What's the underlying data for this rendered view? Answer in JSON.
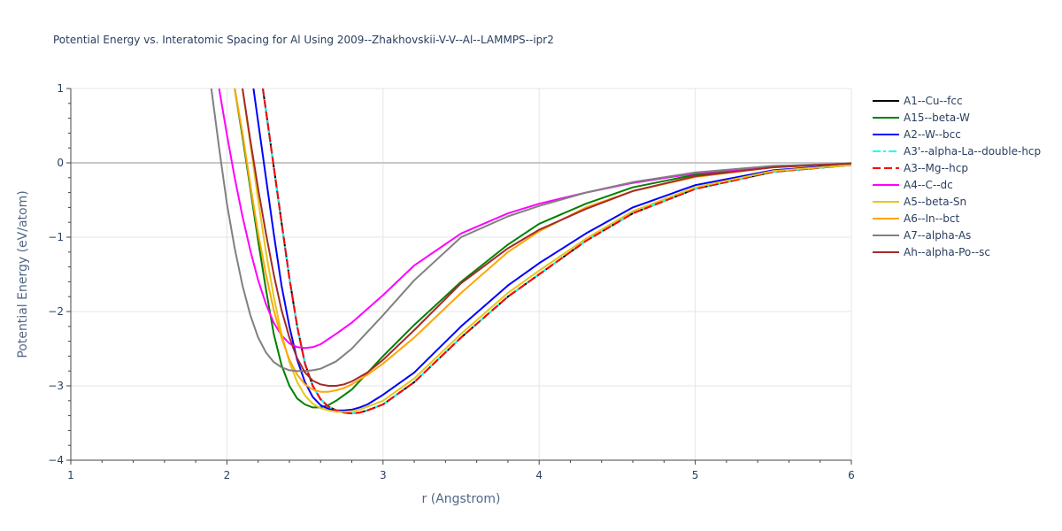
{
  "chart_data": {
    "type": "line",
    "title": "Potential Energy vs. Interatomic Spacing for Al Using 2009--Zhakhovskii-V-V--Al--LAMMPS--ipr2",
    "xlabel": "r (Angstrom)",
    "ylabel": "Potential Energy (eV/atom)",
    "xlim": [
      1,
      6
    ],
    "ylim": [
      -4,
      1
    ],
    "xticks": [
      1,
      2,
      3,
      4,
      5,
      6
    ],
    "xtick_labels": [
      "1",
      "2",
      "3",
      "4",
      "5",
      "6"
    ],
    "yticks": [
      -4,
      -3,
      -2,
      -1,
      0,
      1
    ],
    "ytick_labels": [
      "−4",
      "−3",
      "−2",
      "−1",
      "0",
      "1"
    ],
    "grid": true,
    "legend_position": "right",
    "series": [
      {
        "name": "A1--Cu--fcc",
        "color": "#000000",
        "dash": "solid",
        "x": [
          2.23,
          2.26,
          2.3,
          2.35,
          2.4,
          2.45,
          2.5,
          2.55,
          2.6,
          2.65,
          2.7,
          2.75,
          2.8,
          2.85,
          2.9,
          3.0,
          3.2,
          3.5,
          3.8,
          4.0,
          4.3,
          4.6,
          5.0,
          5.5,
          6.0
        ],
        "y": [
          1.0,
          0.55,
          -0.05,
          -0.8,
          -1.55,
          -2.2,
          -2.7,
          -3.0,
          -3.18,
          -3.28,
          -3.33,
          -3.36,
          -3.37,
          -3.36,
          -3.33,
          -3.25,
          -2.95,
          -2.35,
          -1.8,
          -1.5,
          -1.05,
          -0.68,
          -0.35,
          -0.12,
          -0.03
        ]
      },
      {
        "name": "A15--beta-W",
        "color": "#008000",
        "dash": "solid",
        "x": [
          2.05,
          2.1,
          2.15,
          2.2,
          2.25,
          2.3,
          2.35,
          2.4,
          2.45,
          2.5,
          2.55,
          2.6,
          2.65,
          2.7,
          2.8,
          3.0,
          3.2,
          3.5,
          3.8,
          4.0,
          4.3,
          4.6,
          5.0,
          5.5,
          6.0
        ],
        "y": [
          1.0,
          0.35,
          -0.35,
          -1.05,
          -1.7,
          -2.3,
          -2.72,
          -3.0,
          -3.17,
          -3.25,
          -3.29,
          -3.29,
          -3.26,
          -3.2,
          -3.05,
          -2.6,
          -2.18,
          -1.6,
          -1.1,
          -0.82,
          -0.55,
          -0.33,
          -0.16,
          -0.05,
          -0.01
        ]
      },
      {
        "name": "A2--W--bcc",
        "color": "#0000ff",
        "dash": "solid",
        "x": [
          2.17,
          2.2,
          2.25,
          2.3,
          2.35,
          2.4,
          2.45,
          2.5,
          2.55,
          2.6,
          2.65,
          2.7,
          2.75,
          2.8,
          2.85,
          2.9,
          3.0,
          3.2,
          3.5,
          3.8,
          4.0,
          4.3,
          4.6,
          5.0,
          5.5,
          6.0
        ],
        "y": [
          1.0,
          0.55,
          -0.2,
          -0.95,
          -1.65,
          -2.2,
          -2.65,
          -2.95,
          -3.15,
          -3.26,
          -3.31,
          -3.33,
          -3.33,
          -3.32,
          -3.29,
          -3.25,
          -3.12,
          -2.82,
          -2.2,
          -1.65,
          -1.35,
          -0.95,
          -0.6,
          -0.3,
          -0.1,
          -0.02
        ]
      },
      {
        "name": "A3'--alpha-La--double-hcp",
        "color": "#00ffff",
        "dash": "dashdot",
        "x": [
          2.23,
          2.26,
          2.3,
          2.35,
          2.4,
          2.45,
          2.5,
          2.55,
          2.6,
          2.65,
          2.7,
          2.75,
          2.8,
          2.85,
          2.9,
          3.0,
          3.2,
          3.5,
          3.8,
          4.0,
          4.3,
          4.6,
          5.0,
          5.5,
          6.0
        ],
        "y": [
          1.0,
          0.55,
          -0.05,
          -0.8,
          -1.55,
          -2.2,
          -2.7,
          -3.0,
          -3.18,
          -3.28,
          -3.33,
          -3.36,
          -3.37,
          -3.36,
          -3.33,
          -3.25,
          -2.95,
          -2.35,
          -1.8,
          -1.5,
          -1.05,
          -0.68,
          -0.35,
          -0.12,
          -0.03
        ]
      },
      {
        "name": "A3--Mg--hcp",
        "color": "#ff0000",
        "dash": "dash",
        "x": [
          2.23,
          2.26,
          2.3,
          2.35,
          2.4,
          2.45,
          2.5,
          2.55,
          2.6,
          2.65,
          2.7,
          2.75,
          2.8,
          2.85,
          2.9,
          3.0,
          3.2,
          3.5,
          3.8,
          4.0,
          4.3,
          4.6,
          5.0,
          5.5,
          6.0
        ],
        "y": [
          1.0,
          0.55,
          -0.05,
          -0.8,
          -1.55,
          -2.2,
          -2.7,
          -3.0,
          -3.18,
          -3.28,
          -3.33,
          -3.36,
          -3.37,
          -3.36,
          -3.33,
          -3.25,
          -2.95,
          -2.35,
          -1.8,
          -1.5,
          -1.05,
          -0.68,
          -0.35,
          -0.12,
          -0.03
        ]
      },
      {
        "name": "A4--C--dc",
        "color": "#ff00ff",
        "dash": "solid",
        "x": [
          1.95,
          2.0,
          2.05,
          2.1,
          2.15,
          2.2,
          2.25,
          2.3,
          2.35,
          2.4,
          2.45,
          2.5,
          2.55,
          2.6,
          2.7,
          2.8,
          3.0,
          3.2,
          3.5,
          3.8,
          4.0,
          4.3,
          4.6,
          5.0,
          5.5,
          6.0
        ],
        "y": [
          1.0,
          0.38,
          -0.2,
          -0.72,
          -1.18,
          -1.58,
          -1.9,
          -2.15,
          -2.32,
          -2.43,
          -2.48,
          -2.49,
          -2.48,
          -2.44,
          -2.3,
          -2.15,
          -1.78,
          -1.38,
          -0.95,
          -0.68,
          -0.55,
          -0.4,
          -0.27,
          -0.14,
          -0.05,
          -0.01
        ]
      },
      {
        "name": "A5--beta-Sn",
        "color": "#e6c619",
        "dash": "solid",
        "x": [
          2.1,
          2.15,
          2.2,
          2.25,
          2.3,
          2.35,
          2.4,
          2.45,
          2.5,
          2.55,
          2.6,
          2.65,
          2.7,
          2.75,
          2.8,
          2.85,
          3.0,
          3.2,
          3.5,
          3.8,
          4.0,
          4.3,
          4.6,
          5.0,
          5.5,
          6.0
        ],
        "y": [
          1.0,
          0.25,
          -0.5,
          -1.2,
          -1.8,
          -2.3,
          -2.68,
          -2.95,
          -3.13,
          -3.24,
          -3.3,
          -3.33,
          -3.35,
          -3.35,
          -3.34,
          -3.32,
          -3.2,
          -2.9,
          -2.3,
          -1.75,
          -1.45,
          -1.02,
          -0.65,
          -0.33,
          -0.11,
          -0.03
        ]
      },
      {
        "name": "A6--In--bct",
        "color": "#ffa500",
        "dash": "solid",
        "x": [
          2.05,
          2.1,
          2.15,
          2.2,
          2.25,
          2.3,
          2.35,
          2.4,
          2.45,
          2.5,
          2.55,
          2.6,
          2.65,
          2.7,
          2.75,
          2.8,
          2.9,
          3.0,
          3.2,
          3.5,
          3.8,
          4.0,
          4.3,
          4.6,
          5.0,
          5.5,
          6.0
        ],
        "y": [
          1.0,
          0.4,
          -0.3,
          -0.95,
          -1.5,
          -1.98,
          -2.35,
          -2.65,
          -2.85,
          -2.98,
          -3.05,
          -3.08,
          -3.08,
          -3.06,
          -3.03,
          -2.98,
          -2.85,
          -2.7,
          -2.35,
          -1.75,
          -1.2,
          -0.92,
          -0.6,
          -0.38,
          -0.19,
          -0.06,
          -0.01
        ]
      },
      {
        "name": "A7--alpha-As",
        "color": "#808080",
        "dash": "solid",
        "x": [
          1.9,
          1.95,
          2.0,
          2.05,
          2.1,
          2.15,
          2.2,
          2.25,
          2.3,
          2.35,
          2.4,
          2.45,
          2.5,
          2.55,
          2.6,
          2.7,
          2.8,
          3.0,
          3.2,
          3.5,
          3.8,
          4.0,
          4.3,
          4.6,
          5.0,
          5.5,
          6.0
        ],
        "y": [
          1.0,
          0.2,
          -0.55,
          -1.15,
          -1.65,
          -2.05,
          -2.35,
          -2.55,
          -2.68,
          -2.75,
          -2.79,
          -2.8,
          -2.8,
          -2.79,
          -2.77,
          -2.67,
          -2.5,
          -2.05,
          -1.58,
          -1.0,
          -0.72,
          -0.58,
          -0.4,
          -0.26,
          -0.13,
          -0.04,
          -0.01
        ]
      },
      {
        "name": "Ah--alpha-Po--sc",
        "color": "#a52a2a",
        "dash": "solid",
        "x": [
          2.1,
          2.15,
          2.2,
          2.25,
          2.3,
          2.35,
          2.4,
          2.45,
          2.5,
          2.55,
          2.6,
          2.65,
          2.7,
          2.75,
          2.8,
          2.9,
          3.0,
          3.2,
          3.5,
          3.8,
          4.0,
          4.3,
          4.6,
          5.0,
          5.5,
          6.0
        ],
        "y": [
          1.0,
          0.3,
          -0.35,
          -0.95,
          -1.5,
          -1.98,
          -2.35,
          -2.63,
          -2.82,
          -2.93,
          -2.98,
          -3.0,
          -3.0,
          -2.98,
          -2.94,
          -2.82,
          -2.65,
          -2.25,
          -1.62,
          -1.15,
          -0.9,
          -0.62,
          -0.38,
          -0.18,
          -0.06,
          -0.01
        ]
      }
    ]
  }
}
